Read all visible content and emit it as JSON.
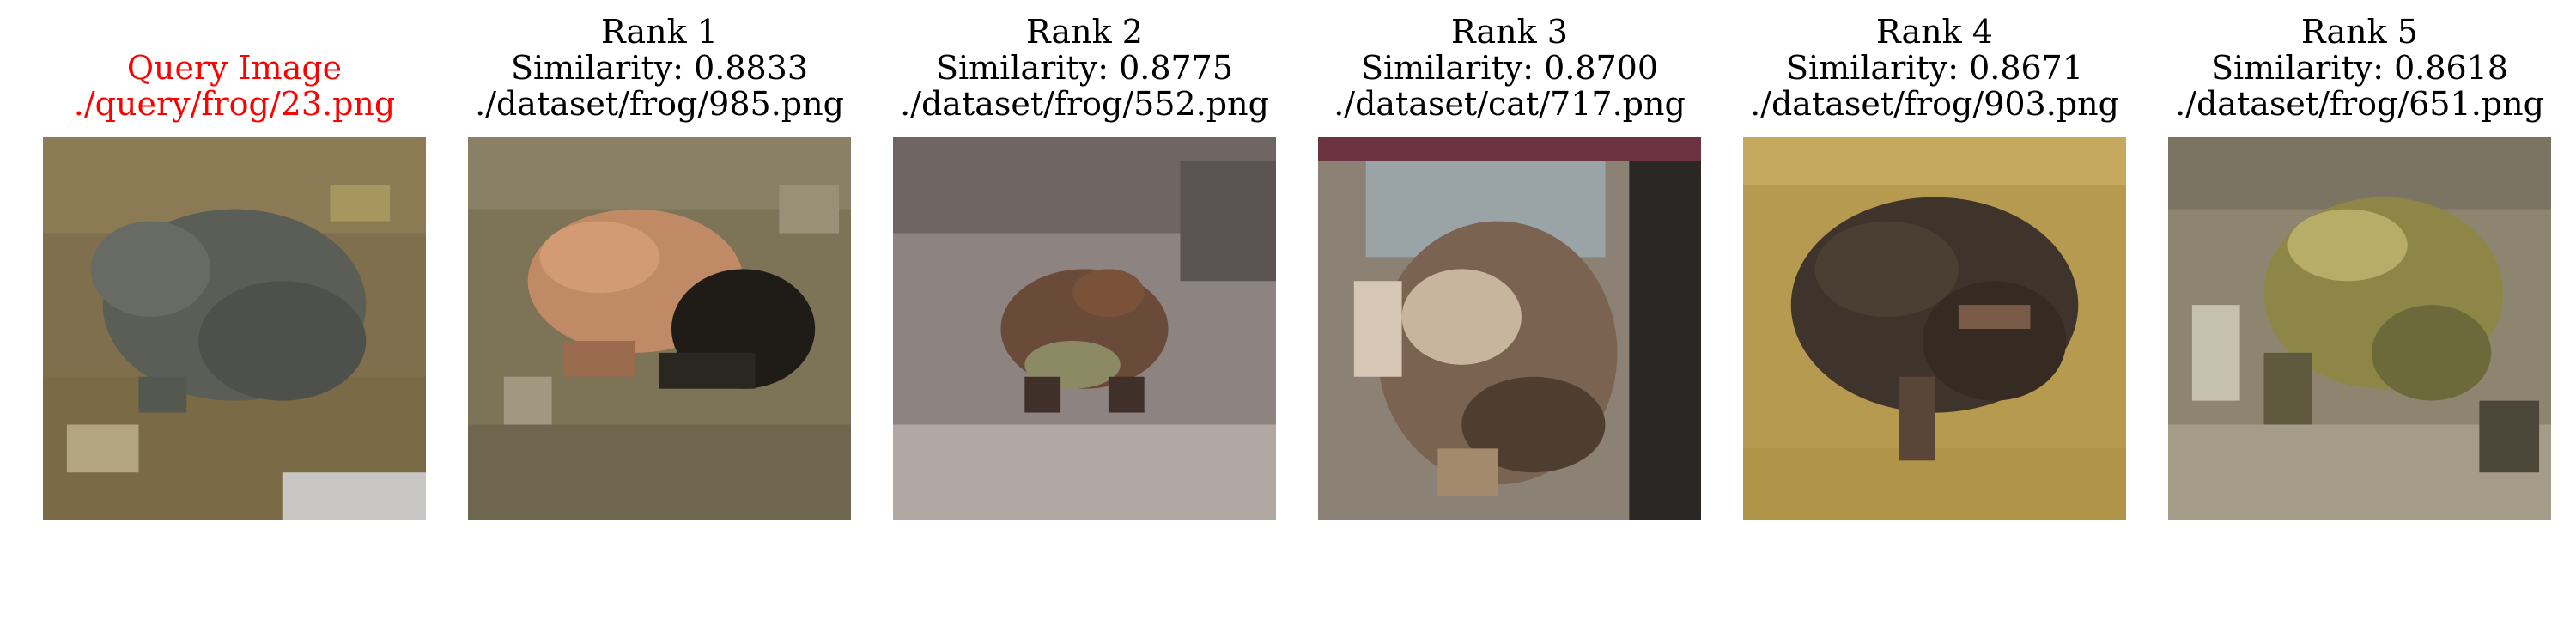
{
  "query": {
    "title": "Query Image",
    "path": "./query/frog/23.png",
    "title_color": "#ff0000"
  },
  "results": [
    {
      "rank_label": "Rank 1",
      "similarity_label": "Similarity: 0.8833",
      "path": "./dataset/frog/985.png"
    },
    {
      "rank_label": "Rank 2",
      "similarity_label": "Similarity: 0.8775",
      "path": "./dataset/frog/552.png"
    },
    {
      "rank_label": "Rank 3",
      "similarity_label": "Similarity: 0.8700",
      "path": "./dataset/cat/717.png"
    },
    {
      "rank_label": "Rank 4",
      "similarity_label": "Similarity: 0.8671",
      "path": "./dataset/frog/903.png"
    },
    {
      "rank_label": "Rank 5",
      "similarity_label": "Similarity: 0.8618",
      "path": "./dataset/frog/651.png"
    }
  ]
}
